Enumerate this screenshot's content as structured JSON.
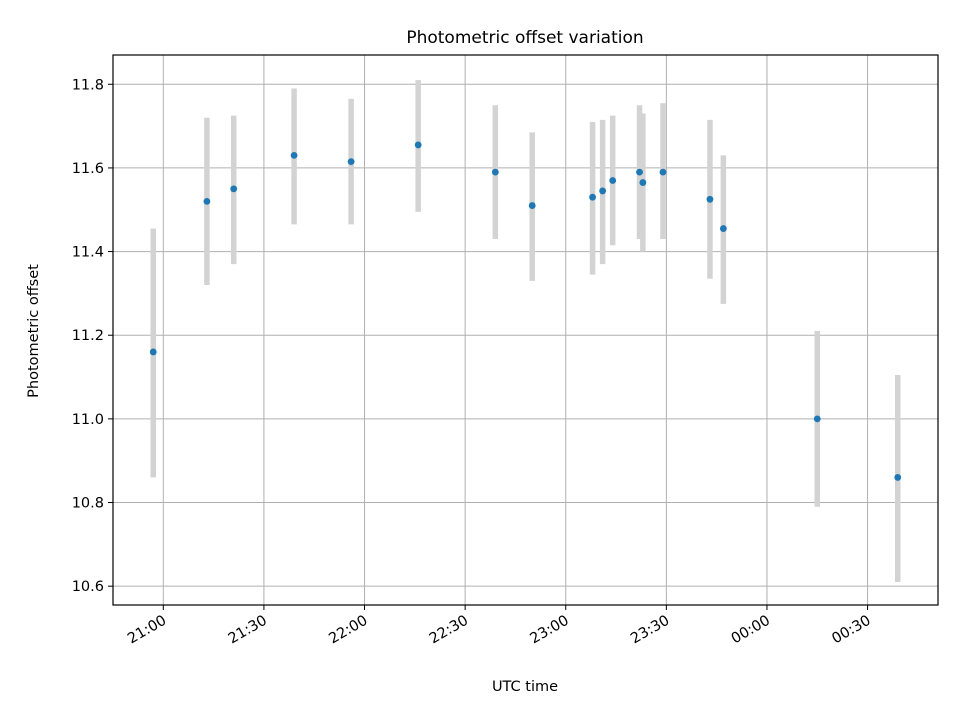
{
  "chart_data": {
    "type": "scatter",
    "title": "Photometric offset variation",
    "xlabel": "UTC time",
    "ylabel": "Photometric offset",
    "x_ticks": [
      "21:00",
      "21:30",
      "22:00",
      "22:30",
      "23:00",
      "23:30",
      "00:00",
      "00:30"
    ],
    "y_ticks": [
      "10.6",
      "10.8",
      "11.0",
      "11.2",
      "11.4",
      "11.6",
      "11.8"
    ],
    "xlim": [
      "20:45",
      "00:51"
    ],
    "ylim": [
      10.555,
      11.87
    ],
    "grid": true,
    "series": [
      {
        "points": [
          {
            "x": "20:57",
            "y": 11.16,
            "ylo": 10.86,
            "yhi": 11.455
          },
          {
            "x": "21:13",
            "y": 11.52,
            "ylo": 11.32,
            "yhi": 11.72
          },
          {
            "x": "21:21",
            "y": 11.55,
            "ylo": 11.37,
            "yhi": 11.725
          },
          {
            "x": "21:39",
            "y": 11.63,
            "ylo": 11.465,
            "yhi": 11.79
          },
          {
            "x": "21:56",
            "y": 11.615,
            "ylo": 11.465,
            "yhi": 11.765
          },
          {
            "x": "22:16",
            "y": 11.655,
            "ylo": 11.495,
            "yhi": 11.81
          },
          {
            "x": "22:39",
            "y": 11.59,
            "ylo": 11.43,
            "yhi": 11.75
          },
          {
            "x": "22:50",
            "y": 11.51,
            "ylo": 11.33,
            "yhi": 11.685
          },
          {
            "x": "23:08",
            "y": 11.53,
            "ylo": 11.345,
            "yhi": 11.71
          },
          {
            "x": "23:11",
            "y": 11.545,
            "ylo": 11.37,
            "yhi": 11.715
          },
          {
            "x": "23:14",
            "y": 11.57,
            "ylo": 11.415,
            "yhi": 11.725
          },
          {
            "x": "23:22",
            "y": 11.59,
            "ylo": 11.43,
            "yhi": 11.75
          },
          {
            "x": "23:23",
            "y": 11.565,
            "ylo": 11.4,
            "yhi": 11.73
          },
          {
            "x": "23:29",
            "y": 11.59,
            "ylo": 11.43,
            "yhi": 11.755
          },
          {
            "x": "23:43",
            "y": 11.525,
            "ylo": 11.335,
            "yhi": 11.715
          },
          {
            "x": "23:47",
            "y": 11.455,
            "ylo": 11.275,
            "yhi": 11.63
          },
          {
            "x": "00:15",
            "y": 11.0,
            "ylo": 10.79,
            "yhi": 11.21
          },
          {
            "x": "00:39",
            "y": 10.86,
            "ylo": 10.61,
            "yhi": 11.105
          }
        ]
      }
    ],
    "colors": {
      "marker": "#1f77b4",
      "errorbar": "#d3d3d3",
      "grid": "#b0b0b0",
      "axes": "#000000"
    }
  }
}
